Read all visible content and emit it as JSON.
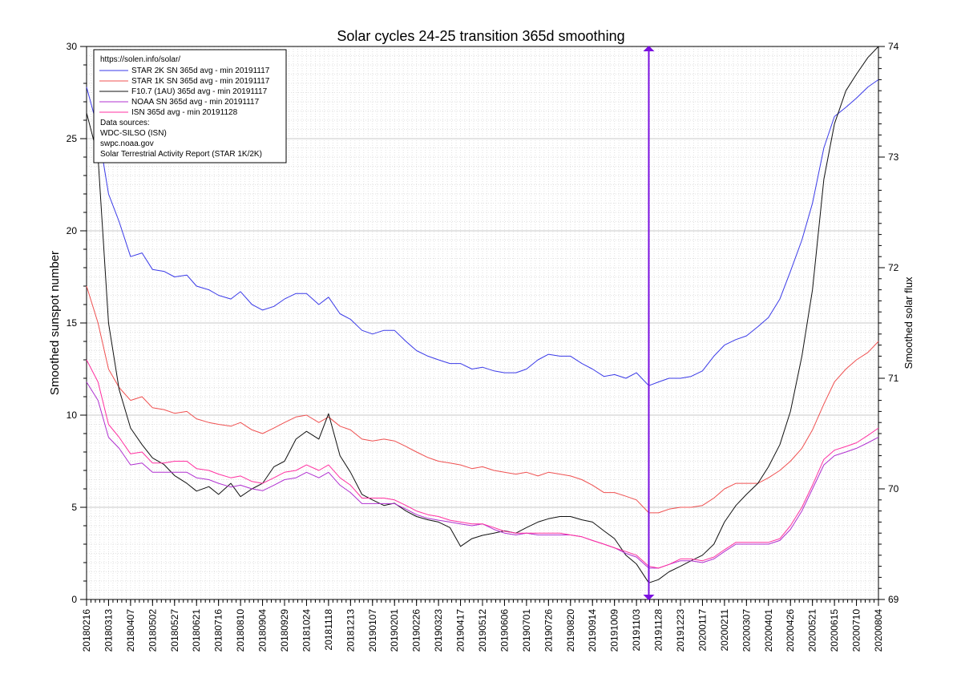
{
  "chart_data": {
    "type": "line",
    "title": "Solar cycles 24-25 transition 365d smoothing",
    "ylabel": "Smoothed sunspot number",
    "y2label": "Smoothed solar flux",
    "ylim": [
      0,
      30
    ],
    "y2lim": [
      69,
      74
    ],
    "yticks": [
      0,
      5,
      10,
      15,
      20,
      25,
      30
    ],
    "y2ticks": [
      69,
      70,
      71,
      72,
      73,
      74
    ],
    "grid": true,
    "legend_position": "top-left",
    "x_start": "20180216",
    "x_end": "20200804",
    "x_dates": [
      "20180216",
      "20180313",
      "20180407",
      "20180502",
      "20180527",
      "20180621",
      "20180716",
      "20180810",
      "20180904",
      "20180929",
      "20181024",
      "20181118",
      "20181213",
      "20190107",
      "20190201",
      "20190226",
      "20190323",
      "20190417",
      "20190512",
      "20190606",
      "20190701",
      "20190726",
      "20190820",
      "20190914",
      "20191009",
      "20191103",
      "20191128",
      "20191223",
      "20200117",
      "20200211",
      "20200307",
      "20200401",
      "20200426",
      "20200521",
      "20200615",
      "20200710",
      "20200804"
    ],
    "marker_date": "20191117",
    "legend": {
      "url": "https://solen.info/solar/",
      "entries": [
        {
          "label": "STAR 2K SN 365d avg - min 20191117",
          "color": "#3a3ae8"
        },
        {
          "label": "STAR 1K SN 365d avg - min 20191117",
          "color": "#ef5050"
        },
        {
          "label": "F10.7 (1AU) 365d avg - min 20191117",
          "color": "#111111"
        },
        {
          "label": "NOAA SN 365d avg - min 20191117",
          "color": "#b030d0"
        },
        {
          "label": "ISN 365d avg - min 20191128",
          "color": "#ff30a0"
        }
      ],
      "sources_title": "Data sources:",
      "sources": [
        "WDC-SILSO (ISN)",
        "swpc.noaa.gov",
        "Solar Terrestrial Activity Report (STAR 1K/2K)"
      ]
    },
    "series": [
      {
        "axis": "left",
        "color": "#3a3ae8",
        "x": [
          "20180216",
          "20180301",
          "20180313",
          "20180325",
          "20180407",
          "20180420",
          "20180502",
          "20180515",
          "20180527",
          "20180610",
          "20180621",
          "20180705",
          "20180716",
          "20180730",
          "20180810",
          "20180823",
          "20180904",
          "20180917",
          "20180929",
          "20181012",
          "20181024",
          "20181107",
          "20181118",
          "20181201",
          "20181213",
          "20181226",
          "20190107",
          "20190120",
          "20190201",
          "20190214",
          "20190226",
          "20190311",
          "20190323",
          "20190405",
          "20190417",
          "20190430",
          "20190512",
          "20190525",
          "20190606",
          "20190619",
          "20190701",
          "20190714",
          "20190726",
          "20190808",
          "20190820",
          "20190902",
          "20190914",
          "20190927",
          "20191009",
          "20191022",
          "20191103",
          "20191117",
          "20191128",
          "20191210",
          "20191223",
          "20200104",
          "20200117",
          "20200130",
          "20200211",
          "20200224",
          "20200307",
          "20200320",
          "20200401",
          "20200414",
          "20200426",
          "20200509",
          "20200521",
          "20200603",
          "20200615",
          "20200628",
          "20200710",
          "20200723",
          "20200804"
        ],
        "values": [
          27.8,
          25.5,
          22.0,
          20.5,
          18.6,
          18.8,
          17.9,
          17.8,
          17.5,
          17.6,
          17.0,
          16.8,
          16.5,
          16.3,
          16.7,
          16.0,
          15.7,
          15.9,
          16.3,
          16.6,
          16.6,
          16.0,
          16.4,
          15.5,
          15.2,
          14.6,
          14.4,
          14.6,
          14.6,
          14.0,
          13.5,
          13.2,
          13.0,
          12.8,
          12.8,
          12.5,
          12.6,
          12.4,
          12.3,
          12.3,
          12.5,
          13.0,
          13.3,
          13.2,
          13.2,
          12.8,
          12.5,
          12.1,
          12.2,
          12.0,
          12.3,
          11.6,
          11.8,
          12.0,
          12.0,
          12.1,
          12.4,
          13.2,
          13.8,
          14.1,
          14.3,
          14.8,
          15.3,
          16.3,
          17.8,
          19.5,
          21.5,
          24.5,
          26.2,
          26.7,
          27.2,
          27.8,
          28.2
        ]
      },
      {
        "axis": "left",
        "color": "#ef5050",
        "x": [
          "20180216",
          "20180301",
          "20180313",
          "20180325",
          "20180407",
          "20180420",
          "20180502",
          "20180515",
          "20180527",
          "20180610",
          "20180621",
          "20180705",
          "20180716",
          "20180730",
          "20180810",
          "20180823",
          "20180904",
          "20180917",
          "20180929",
          "20181012",
          "20181024",
          "20181107",
          "20181118",
          "20181201",
          "20181213",
          "20181226",
          "20190107",
          "20190120",
          "20190201",
          "20190214",
          "20190226",
          "20190311",
          "20190323",
          "20190405",
          "20190417",
          "20190430",
          "20190512",
          "20190525",
          "20190606",
          "20190619",
          "20190701",
          "20190714",
          "20190726",
          "20190808",
          "20190820",
          "20190902",
          "20190914",
          "20190927",
          "20191009",
          "20191022",
          "20191103",
          "20191117",
          "20191128",
          "20191210",
          "20191223",
          "20200104",
          "20200117",
          "20200130",
          "20200211",
          "20200224",
          "20200307",
          "20200320",
          "20200401",
          "20200414",
          "20200426",
          "20200509",
          "20200521",
          "20200603",
          "20200615",
          "20200628",
          "20200710",
          "20200723",
          "20200804"
        ],
        "values": [
          17.0,
          15.0,
          12.5,
          11.5,
          10.8,
          11.0,
          10.4,
          10.3,
          10.1,
          10.2,
          9.8,
          9.6,
          9.5,
          9.4,
          9.6,
          9.2,
          9.0,
          9.3,
          9.6,
          9.9,
          10.0,
          9.6,
          9.9,
          9.4,
          9.2,
          8.7,
          8.6,
          8.7,
          8.6,
          8.3,
          8.0,
          7.7,
          7.5,
          7.4,
          7.3,
          7.1,
          7.2,
          7.0,
          6.9,
          6.8,
          6.9,
          6.7,
          6.9,
          6.8,
          6.7,
          6.5,
          6.2,
          5.8,
          5.8,
          5.6,
          5.4,
          4.7,
          4.7,
          4.9,
          5.0,
          5.0,
          5.1,
          5.5,
          6.0,
          6.3,
          6.3,
          6.3,
          6.6,
          7.0,
          7.5,
          8.2,
          9.2,
          10.6,
          11.8,
          12.5,
          13.0,
          13.4,
          14.0
        ]
      },
      {
        "axis": "right",
        "color": "#111111",
        "x": [
          "20180216",
          "20180301",
          "20180313",
          "20180325",
          "20180407",
          "20180420",
          "20180502",
          "20180515",
          "20180527",
          "20180610",
          "20180621",
          "20180705",
          "20180716",
          "20180730",
          "20180810",
          "20180823",
          "20180904",
          "20180917",
          "20180929",
          "20181012",
          "20181024",
          "20181107",
          "20181118",
          "20181201",
          "20181213",
          "20181226",
          "20190107",
          "20190120",
          "20190201",
          "20190214",
          "20190226",
          "20190311",
          "20190323",
          "20190405",
          "20190417",
          "20190430",
          "20190512",
          "20190525",
          "20190606",
          "20190619",
          "20190701",
          "20190714",
          "20190726",
          "20190808",
          "20190820",
          "20190902",
          "20190914",
          "20190927",
          "20191009",
          "20191022",
          "20191103",
          "20191117",
          "20191128",
          "20191210",
          "20191223",
          "20200104",
          "20200117",
          "20200130",
          "20200211",
          "20200224",
          "20200307",
          "20200320",
          "20200401",
          "20200414",
          "20200426",
          "20200509",
          "20200521",
          "20200603",
          "20200615",
          "20200628",
          "20200710",
          "20200723",
          "20200804"
        ],
        "values": [
          73.4,
          73.0,
          71.5,
          70.9,
          70.55,
          70.4,
          70.28,
          70.22,
          70.12,
          70.05,
          69.98,
          70.02,
          69.95,
          70.05,
          69.93,
          70.0,
          70.05,
          70.2,
          70.25,
          70.45,
          70.52,
          70.45,
          70.68,
          70.3,
          70.15,
          69.95,
          69.9,
          69.85,
          69.87,
          69.8,
          69.75,
          69.72,
          69.7,
          69.65,
          69.48,
          69.55,
          69.58,
          69.6,
          69.62,
          69.6,
          69.65,
          69.7,
          69.73,
          69.75,
          69.75,
          69.72,
          69.7,
          69.62,
          69.55,
          69.4,
          69.32,
          69.15,
          69.18,
          69.25,
          69.3,
          69.35,
          69.4,
          69.5,
          69.7,
          69.85,
          69.95,
          70.05,
          70.2,
          70.4,
          70.7,
          71.2,
          71.8,
          72.8,
          73.3,
          73.6,
          73.75,
          73.9,
          74.0
        ]
      },
      {
        "axis": "left",
        "color": "#b030d0",
        "x": [
          "20180216",
          "20180301",
          "20180313",
          "20180325",
          "20180407",
          "20180420",
          "20180502",
          "20180515",
          "20180527",
          "20180610",
          "20180621",
          "20180705",
          "20180716",
          "20180730",
          "20180810",
          "20180823",
          "20180904",
          "20180917",
          "20180929",
          "20181012",
          "20181024",
          "20181107",
          "20181118",
          "20181201",
          "20181213",
          "20181226",
          "20190107",
          "20190120",
          "20190201",
          "20190214",
          "20190226",
          "20190311",
          "20190323",
          "20190405",
          "20190417",
          "20190430",
          "20190512",
          "20190525",
          "20190606",
          "20190619",
          "20190701",
          "20190714",
          "20190726",
          "20190808",
          "20190820",
          "20190902",
          "20190914",
          "20190927",
          "20191009",
          "20191022",
          "20191103",
          "20191117",
          "20191128",
          "20191210",
          "20191223",
          "20200104",
          "20200117",
          "20200130",
          "20200211",
          "20200224",
          "20200307",
          "20200320",
          "20200401",
          "20200414",
          "20200426",
          "20200509",
          "20200521",
          "20200603",
          "20200615",
          "20200628",
          "20200710",
          "20200723",
          "20200804"
        ],
        "values": [
          11.8,
          10.8,
          8.8,
          8.2,
          7.3,
          7.4,
          6.9,
          6.9,
          6.9,
          6.9,
          6.6,
          6.5,
          6.3,
          6.1,
          6.2,
          6.0,
          5.9,
          6.2,
          6.5,
          6.6,
          6.9,
          6.6,
          6.9,
          6.2,
          5.8,
          5.2,
          5.2,
          5.2,
          5.2,
          4.9,
          4.6,
          4.4,
          4.3,
          4.2,
          4.1,
          4.0,
          4.1,
          3.8,
          3.6,
          3.5,
          3.6,
          3.5,
          3.5,
          3.5,
          3.5,
          3.4,
          3.2,
          3.0,
          2.8,
          2.5,
          2.3,
          1.7,
          1.7,
          1.9,
          2.1,
          2.1,
          2.0,
          2.2,
          2.6,
          3.0,
          3.0,
          3.0,
          3.0,
          3.2,
          3.8,
          4.8,
          6.0,
          7.3,
          7.8,
          8.0,
          8.2,
          8.5,
          8.8
        ]
      },
      {
        "axis": "left",
        "color": "#ff30a0",
        "x": [
          "20180216",
          "20180301",
          "20180313",
          "20180325",
          "20180407",
          "20180420",
          "20180502",
          "20180515",
          "20180527",
          "20180610",
          "20180621",
          "20180705",
          "20180716",
          "20180730",
          "20180810",
          "20180823",
          "20180904",
          "20180917",
          "20180929",
          "20181012",
          "20181024",
          "20181107",
          "20181118",
          "20181201",
          "20181213",
          "20181226",
          "20190107",
          "20190120",
          "20190201",
          "20190214",
          "20190226",
          "20190311",
          "20190323",
          "20190405",
          "20190417",
          "20190430",
          "20190512",
          "20190525",
          "20190606",
          "20190619",
          "20190701",
          "20190714",
          "20190726",
          "20190808",
          "20190820",
          "20190902",
          "20190914",
          "20190927",
          "20191009",
          "20191022",
          "20191103",
          "20191117",
          "20191128",
          "20191210",
          "20191223",
          "20200104",
          "20200117",
          "20200130",
          "20200211",
          "20200224",
          "20200307",
          "20200320",
          "20200401",
          "20200414",
          "20200426",
          "20200509",
          "20200521",
          "20200603",
          "20200615",
          "20200628",
          "20200710",
          "20200723",
          "20200804"
        ],
        "values": [
          13.0,
          11.8,
          9.5,
          8.8,
          7.9,
          8.0,
          7.4,
          7.4,
          7.5,
          7.5,
          7.1,
          7.0,
          6.8,
          6.6,
          6.7,
          6.4,
          6.3,
          6.6,
          6.9,
          7.0,
          7.3,
          7.0,
          7.3,
          6.6,
          6.2,
          5.5,
          5.5,
          5.5,
          5.4,
          5.1,
          4.8,
          4.6,
          4.5,
          4.3,
          4.2,
          4.1,
          4.1,
          3.9,
          3.7,
          3.6,
          3.6,
          3.6,
          3.6,
          3.6,
          3.5,
          3.4,
          3.2,
          3.0,
          2.8,
          2.6,
          2.4,
          1.8,
          1.7,
          1.9,
          2.2,
          2.2,
          2.1,
          2.3,
          2.7,
          3.1,
          3.1,
          3.1,
          3.1,
          3.3,
          4.0,
          5.0,
          6.2,
          7.6,
          8.1,
          8.3,
          8.5,
          8.9,
          9.3
        ]
      }
    ]
  }
}
